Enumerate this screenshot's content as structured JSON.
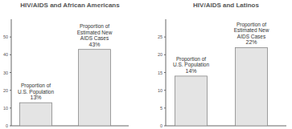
{
  "chart_data": [
    {
      "type": "bar",
      "title": "HIV/AIDS and African Americans",
      "categories": [
        "Proportion of U.S. Population",
        "Proportion of Estimated New AIDS Cases"
      ],
      "values": [
        13,
        43
      ],
      "value_labels": [
        "13%",
        "43%"
      ],
      "data_labels": true,
      "color": "#e4e4e4",
      "ylim": [
        0,
        60
      ],
      "yticks": [
        0,
        10,
        20,
        30,
        40,
        50
      ],
      "grid": false
    },
    {
      "type": "bar",
      "title": "HIV/AIDS and Latinos",
      "categories": [
        "Proportion of U.S. Population",
        "Proportion of Estimated New AIDS Cases"
      ],
      "values": [
        14,
        22
      ],
      "value_labels": [
        "14%",
        "22%"
      ],
      "data_labels": true,
      "color": "#e4e4e4",
      "ylim": [
        0,
        30
      ],
      "yticks": [
        0,
        5,
        10,
        15,
        20,
        25
      ],
      "grid": false
    }
  ]
}
